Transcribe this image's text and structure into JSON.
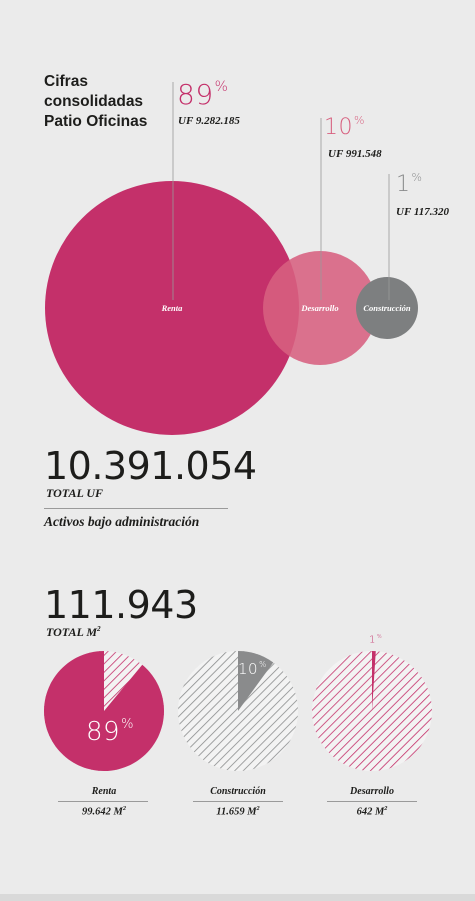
{
  "title": "Cifras consolidadas Patio Oficinas",
  "bubbles": {
    "renta": {
      "label": "Renta",
      "percent": "89",
      "pct_sign": "%",
      "uf": "UF 9.282.185",
      "color": "#c4306a"
    },
    "desarrollo": {
      "label": "Desarrollo",
      "percent": "10",
      "pct_sign": "%",
      "uf": "UF 991.548",
      "color": "#d7607f"
    },
    "construccion": {
      "label": "Construcción",
      "percent": "1",
      "pct_sign": "%",
      "uf": "UF 117.320",
      "color": "#7d7f80"
    }
  },
  "totals": {
    "uf_value": "10.391.054",
    "uf_label": "TOTAL UF",
    "assets_label": "Activos bajo administración",
    "m2_value": "111.943",
    "m2_label_prefix": "TOTAL M",
    "m2_label_sup": "2"
  },
  "chart_data": [
    {
      "type": "pie",
      "categories": [
        "Renta",
        "Construcción",
        "Desarrollo"
      ],
      "values": [
        89,
        10,
        1
      ],
      "unit": "%"
    },
    {
      "type": "bar",
      "categories": [
        "Renta",
        "Desarrollo",
        "Construcción"
      ],
      "values": [
        9282185,
        991548,
        117320
      ],
      "unit": "UF"
    }
  ],
  "pies": [
    {
      "label": "Renta",
      "percent": "89",
      "pct_sign": "%",
      "area": "99.642 M",
      "area_sup": "2",
      "fraction": 0.89,
      "color": "#c4306a"
    },
    {
      "label": "Construcción",
      "percent": "10",
      "pct_sign": "%",
      "area": "11.659 M",
      "area_sup": "2",
      "fraction": 0.1,
      "color": "#8a8b8c"
    },
    {
      "label": "Desarrollo",
      "percent": "1",
      "pct_sign": "%",
      "area": "642 M",
      "area_sup": "2",
      "fraction": 0.01,
      "color": "#c4306a"
    }
  ],
  "colors": {
    "pink": "#c4306a",
    "pink_light": "#d7607f",
    "gray": "#7d7f80",
    "text": "#1d1d1b"
  }
}
